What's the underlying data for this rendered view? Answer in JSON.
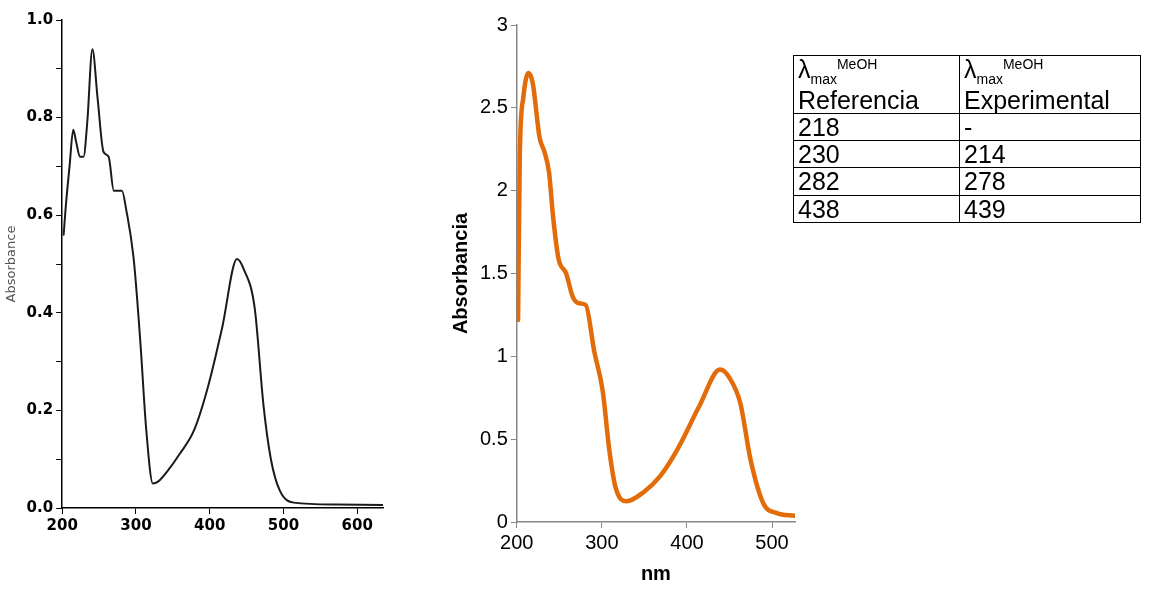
{
  "chart_data": [
    {
      "type": "line",
      "ylabel": "Absorbance",
      "xlim": [
        200,
        635
      ],
      "ylim": [
        0,
        1
      ],
      "xticks": [
        200,
        300,
        400,
        500,
        600
      ],
      "yticks": [
        {
          "value": 0,
          "label": "0.0"
        },
        {
          "value": 0.1,
          "label": null
        },
        {
          "value": 0.2,
          "label": "0.2"
        },
        {
          "value": 0.3,
          "label": null
        },
        {
          "value": 0.4,
          "label": "0.4"
        },
        {
          "value": 0.5,
          "label": null
        },
        {
          "value": 0.6,
          "label": "0.6"
        },
        {
          "value": 0.7,
          "label": null
        },
        {
          "value": 0.8,
          "label": "0.8"
        },
        {
          "value": 0.9,
          "label": null
        },
        {
          "value": 1,
          "label": "1.0"
        }
      ],
      "grid": false,
      "legend": false,
      "line_style": "solid",
      "series": [
        {
          "color": "#1a1a1a",
          "x": [
            202,
            205,
            210,
            215,
            219,
            224,
            229,
            234,
            241,
            248,
            256,
            263,
            270,
            275,
            281,
            287,
            297,
            306,
            314,
            323,
            330,
            345,
            359,
            379,
            398,
            417,
            437,
            446,
            461,
            473,
            483,
            495,
            514,
            572,
            635
          ],
          "values": [
            0.56,
            0.62,
            0.7,
            0.775,
            0.75,
            0.72,
            0.72,
            0.79,
            0.94,
            0.84,
            0.73,
            0.72,
            0.65,
            0.65,
            0.65,
            0.61,
            0.51,
            0.34,
            0.16,
            0.05,
            0.054,
            0.08,
            0.11,
            0.16,
            0.25,
            0.37,
            0.51,
            0.49,
            0.41,
            0.21,
            0.1,
            0.036,
            0.011,
            0.007,
            0.006
          ]
        }
      ]
    },
    {
      "type": "line",
      "xlabel": "nm",
      "ylabel": "Absorbancia",
      "xlim": [
        200,
        527
      ],
      "ylim": [
        0,
        3
      ],
      "xticks": [
        200,
        300,
        400,
        500
      ],
      "yticks": [
        0,
        0.5,
        1,
        1.5,
        2,
        2.5,
        3
      ],
      "grid": false,
      "legend": false,
      "line_style": "solid",
      "series": [
        {
          "color": "#e36c0a",
          "x": [
            201.5,
            203.5,
            207.6,
            213.6,
            218.7,
            226.8,
            232.8,
            237.9,
            242.9,
            249,
            258,
            265.7,
            273,
            281,
            291,
            301,
            308.6,
            316,
            328.8,
            349,
            369,
            389,
            414.6,
            438.9,
            450,
            462.6,
            475,
            490,
            505.6,
            526.8
          ],
          "values": [
            1.22,
            2.21,
            2.56,
            2.71,
            2.65,
            2.32,
            2.23,
            2.11,
            1.83,
            1.59,
            1.5,
            1.36,
            1.32,
            1.31,
            1.03,
            0.79,
            0.44,
            0.21,
            0.125,
            0.18,
            0.28,
            0.44,
            0.7,
            0.92,
            0.87,
            0.72,
            0.37,
            0.11,
            0.054,
            0.038
          ]
        }
      ]
    },
    {
      "type": "other",
      "annotations": [
        "λ$_{max}$$^{MeOH}$ Referencia",
        "λ$_{max}$$^{MeOH}$ Experimental",
        "218",
        "-",
        "230",
        "214",
        "282",
        "278",
        "438",
        "439"
      ]
    }
  ]
}
